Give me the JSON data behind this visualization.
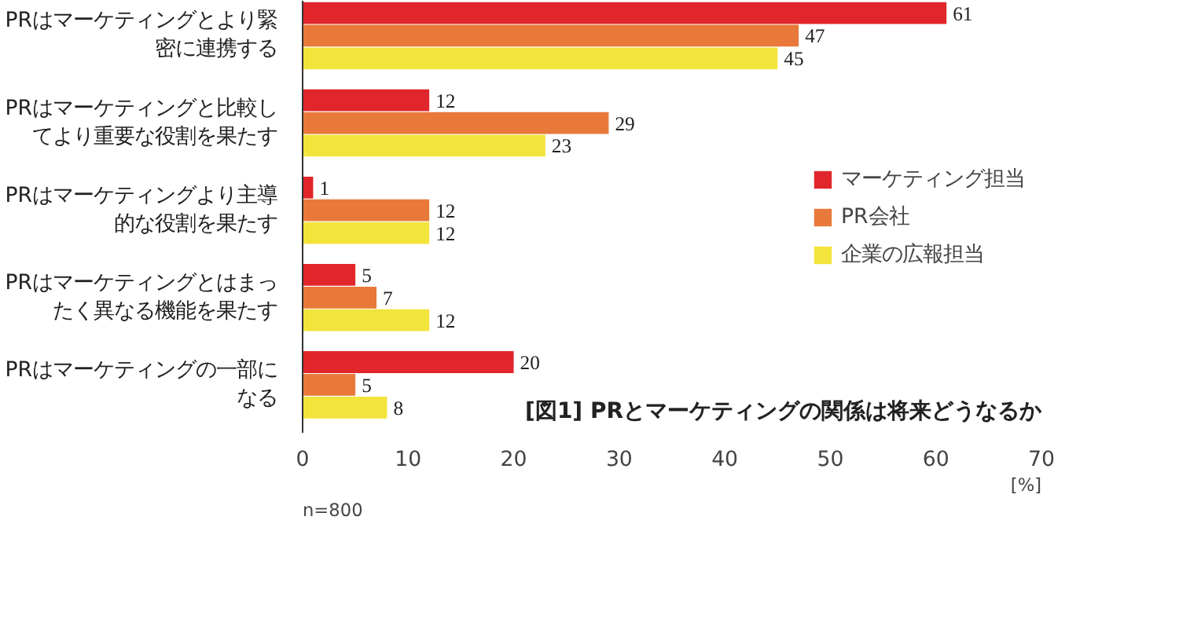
{
  "chart_data": {
    "type": "bar",
    "orientation": "horizontal",
    "title": "[図1] PRとマーケティングの関係は将来どうなるか",
    "xlabel": "[%]",
    "categories": [
      "PRはマーケティングとより緊密に連携する",
      "PRはマーケティングと比較してより重要な役割を果たす",
      "PRはマーケティングより主導的な役割を果たす",
      "PRはマーケティングとはまったく異なる機能を果たす",
      "PRはマーケティングの一部になる"
    ],
    "series": [
      {
        "name": "マーケティング担当",
        "color": "#e0262b",
        "values": [
          61,
          12,
          1,
          5,
          20
        ]
      },
      {
        "name": "PR会社",
        "color": "#e8793a",
        "values": [
          47,
          29,
          12,
          7,
          5
        ]
      },
      {
        "name": "企業の広報担当",
        "color": "#f3e43c",
        "values": [
          45,
          23,
          12,
          12,
          8
        ]
      }
    ],
    "xlim": [
      0,
      70
    ],
    "xticks": [
      0,
      10,
      20,
      30,
      40,
      50,
      60,
      70
    ],
    "data_labels": true,
    "legend": "right",
    "annotations": [
      "n=800"
    ]
  }
}
